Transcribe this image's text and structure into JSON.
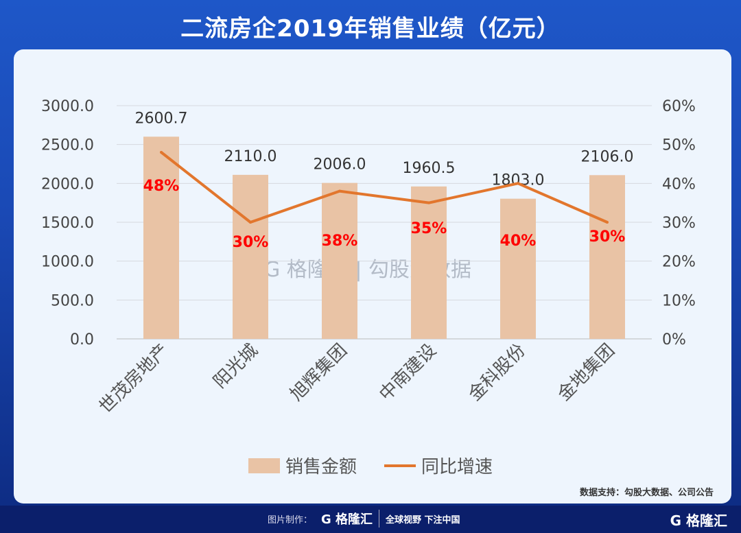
{
  "title": "二流房企2019年销售业绩（亿元）",
  "source": "数据支持：勾股大数据、公司公告",
  "watermark": {
    "logo": "G 格隆汇",
    "text": "勾股大数据"
  },
  "footer": {
    "made_by": "图片制作：",
    "logo": "G 格隆汇",
    "slogan": "全球视野 下注中国",
    "corner_logo": "G 格隆汇"
  },
  "colors": {
    "bar": "#e9c3a5",
    "line": "#e2762d",
    "label_red": "#ff0000"
  },
  "chart_data": {
    "type": "bar+line",
    "categories": [
      "世茂房地产",
      "阳光城",
      "旭辉集团",
      "中南建设",
      "金科股份",
      "金地集团"
    ],
    "series": [
      {
        "name": "销售金额",
        "type": "bar",
        "axis": "left",
        "values": [
          2600.7,
          2110.0,
          2006.0,
          1960.5,
          1803.0,
          2106.0
        ],
        "labels": [
          "2600.7",
          "2110.0",
          "2006.0",
          "1960.5",
          "1803.0",
          "2106.0"
        ]
      },
      {
        "name": "同比增速",
        "type": "line",
        "axis": "right",
        "values": [
          48,
          30,
          38,
          35,
          40,
          30
        ],
        "labels": [
          "48%",
          "30%",
          "38%",
          "35%",
          "40%",
          "30%"
        ]
      }
    ],
    "left_axis": {
      "ylim": [
        0,
        3000
      ],
      "ticks": [
        "0.0",
        "500.0",
        "1000.0",
        "1500.0",
        "2000.0",
        "2500.0",
        "3000.0"
      ]
    },
    "right_axis": {
      "ylim": [
        0,
        60
      ],
      "ticks": [
        "0%",
        "10%",
        "20%",
        "30%",
        "40%",
        "50%",
        "60%"
      ]
    },
    "grid": true,
    "legend": "bottom"
  }
}
